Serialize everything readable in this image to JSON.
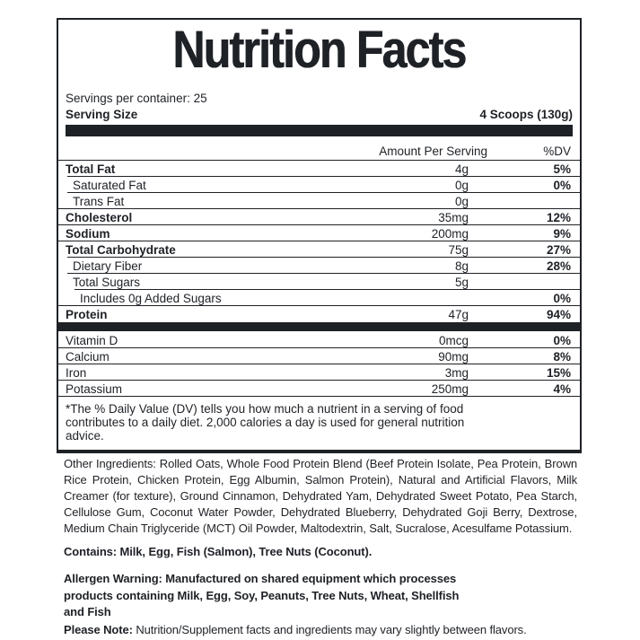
{
  "colors": {
    "ink": "#1e2126",
    "background": "#ffffff"
  },
  "label": {
    "title": "Nutrition Facts",
    "servings_line": "Servings per container: 25",
    "serving_size_label": "Serving Size",
    "serving_size_value": "4 Scoops (130g)",
    "col_amount": "Amount Per Serving",
    "col_dv": "%DV",
    "rows": [
      {
        "name": "Total Fat",
        "amount": "4g",
        "dv": "5%",
        "bold": true,
        "indent": 0
      },
      {
        "name": "Saturated Fat",
        "amount": "0g",
        "dv": "0%",
        "bold": false,
        "indent": 1
      },
      {
        "name": "Trans Fat",
        "amount": "0g",
        "dv": "",
        "bold": false,
        "indent": 1
      },
      {
        "name": "Cholesterol",
        "amount": "35mg",
        "dv": "12%",
        "bold": true,
        "indent": 0
      },
      {
        "name": "Sodium",
        "amount": "200mg",
        "dv": "9%",
        "bold": true,
        "indent": 0
      },
      {
        "name": "Total Carbohydrate",
        "amount": "75g",
        "dv": "27%",
        "bold": true,
        "indent": 0
      },
      {
        "name": "Dietary Fiber",
        "amount": "8g",
        "dv": "28%",
        "bold": false,
        "indent": 1
      },
      {
        "name": "Total Sugars",
        "amount": "5g",
        "dv": "",
        "bold": false,
        "indent": 1
      },
      {
        "name": "Includes 0g Added Sugars",
        "amount": "",
        "dv": "0%",
        "bold": false,
        "indent": 2
      },
      {
        "name": "Protein",
        "amount": "47g",
        "dv": "94%",
        "bold": true,
        "indent": 0
      }
    ],
    "vitamin_rows": [
      {
        "name": "Vitamin D",
        "amount": "0mcg",
        "dv": "0%"
      },
      {
        "name": "Calcium",
        "amount": "90mg",
        "dv": "8%"
      },
      {
        "name": "Iron",
        "amount": "3mg",
        "dv": "15%"
      },
      {
        "name": "Potassium",
        "amount": "250mg",
        "dv": "4%"
      }
    ],
    "footnote_lines": [
      "*The % Daily Value (DV) tells you how much a nutrient in a serving of food",
      "contributes to a daily diet. 2,000 calories a day is used for general nutrition",
      "advice."
    ]
  },
  "below": {
    "other_ingredients": "Other Ingredients: Rolled Oats, Whole Food Protein Blend (Beef Protein Isolate, Pea Protein, Brown Rice Protein, Chicken Protein, Egg Albumin, Salmon Protein), Natural and Artificial Flavors, Milk Creamer (for texture), Ground Cinnamon, Dehydrated Yam, Dehydrated Sweet Potato, Pea Starch, Cellulose Gum, Coconut Water Powder, Dehydrated Blueberry, Dehydrated Goji Berry, Dextrose, Medium Chain Triglyceride (MCT) Oil Powder, Maltodextrin, Salt, Sucralose, Acesulfame Potassium.",
    "contains": "Contains: Milk, Egg, Fish (Salmon), Tree Nuts (Coconut).",
    "allergen_lines": [
      "Allergen Warning: Manufactured on shared equipment which processes",
      "products containing Milk, Egg, Soy, Peanuts, Tree Nuts, Wheat, Shellfish",
      "and Fish"
    ],
    "please_note_label": "Please Note:",
    "please_note_text": " Nutrition/Supplement facts and ingredients may vary slightly between flavors."
  }
}
